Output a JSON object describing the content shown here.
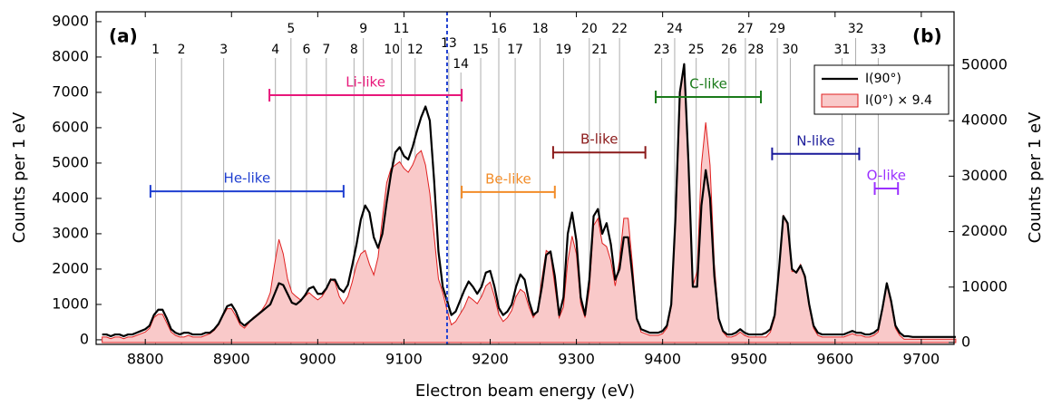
{
  "chart_data": {
    "type": "line",
    "xlabel": "Electron beam energy (eV)",
    "ylabel": "Counts per 1 eV",
    "y2label": "Counts per 1 eV",
    "panel_labels": [
      "(a)",
      "(b)"
    ],
    "xlim": [
      8743,
      9738
    ],
    "ylim": [
      -130,
      9280
    ],
    "y2lim": [
      -330,
      59640
    ],
    "xticks": [
      8800,
      8900,
      9000,
      9100,
      9200,
      9300,
      9400,
      9500,
      9600,
      9700
    ],
    "yticks": [
      0,
      1000,
      2000,
      3000,
      4000,
      5000,
      6000,
      7000,
      8000,
      9000
    ],
    "y2ticks": [
      0,
      10000,
      20000,
      30000,
      40000,
      50000
    ],
    "legend": "upper right",
    "divider_x": 9150,
    "x": [
      8750,
      8755,
      8760,
      8765,
      8770,
      8775,
      8780,
      8785,
      8790,
      8795,
      8800,
      8805,
      8810,
      8815,
      8820,
      8825,
      8830,
      8835,
      8840,
      8845,
      8850,
      8855,
      8860,
      8865,
      8870,
      8875,
      8880,
      8885,
      8890,
      8895,
      8900,
      8905,
      8910,
      8915,
      8920,
      8925,
      8930,
      8935,
      8940,
      8945,
      8950,
      8955,
      8960,
      8965,
      8970,
      8975,
      8980,
      8985,
      8990,
      8995,
      9000,
      9005,
      9010,
      9015,
      9020,
      9025,
      9030,
      9035,
      9040,
      9045,
      9050,
      9055,
      9060,
      9065,
      9070,
      9075,
      9080,
      9085,
      9090,
      9095,
      9100,
      9105,
      9110,
      9115,
      9120,
      9125,
      9130,
      9135,
      9140,
      9145,
      9150,
      9155,
      9160,
      9165,
      9170,
      9175,
      9180,
      9185,
      9190,
      9195,
      9200,
      9205,
      9210,
      9215,
      9220,
      9225,
      9230,
      9235,
      9240,
      9245,
      9250,
      9255,
      9260,
      9265,
      9270,
      9275,
      9280,
      9285,
      9290,
      9295,
      9300,
      9305,
      9310,
      9315,
      9320,
      9325,
      9330,
      9335,
      9340,
      9345,
      9350,
      9355,
      9360,
      9365,
      9370,
      9375,
      9380,
      9385,
      9390,
      9395,
      9400,
      9405,
      9410,
      9415,
      9420,
      9425,
      9430,
      9435,
      9440,
      9445,
      9450,
      9455,
      9460,
      9465,
      9470,
      9475,
      9480,
      9485,
      9490,
      9495,
      9500,
      9505,
      9510,
      9515,
      9520,
      9525,
      9530,
      9535,
      9540,
      9545,
      9550,
      9555,
      9560,
      9565,
      9570,
      9575,
      9580,
      9585,
      9590,
      9595,
      9600,
      9605,
      9610,
      9615,
      9620,
      9625,
      9630,
      9635,
      9640,
      9645,
      9650,
      9655,
      9660,
      9665,
      9670,
      9675,
      9680,
      9685,
      9690,
      9695,
      9700,
      9705,
      9710,
      9715,
      9720,
      9725,
      9730,
      9735,
      9740
    ],
    "series": [
      {
        "name": "I(0°) × 9.4",
        "color": "#e02020",
        "fill": "#f9c9c9",
        "axis": "y2",
        "values": [
          1000,
          1000,
          700,
          1000,
          1000,
          700,
          1000,
          1000,
          1300,
          1600,
          1900,
          2600,
          4500,
          5100,
          5100,
          3500,
          1900,
          1300,
          1000,
          1000,
          1300,
          1000,
          1000,
          1000,
          1300,
          1600,
          2200,
          3200,
          4800,
          6100,
          6100,
          4800,
          3200,
          2600,
          3500,
          4500,
          5100,
          5800,
          7000,
          9000,
          14100,
          18600,
          16000,
          11500,
          9000,
          8300,
          7700,
          8300,
          9000,
          8300,
          7700,
          8300,
          9600,
          11500,
          10900,
          8300,
          7000,
          8300,
          10900,
          14100,
          16000,
          16600,
          14100,
          12200,
          15400,
          22400,
          28800,
          31400,
          32000,
          32600,
          31400,
          30700,
          32000,
          33900,
          34600,
          32000,
          26900,
          19200,
          11500,
          9000,
          5800,
          3200,
          3800,
          5100,
          6400,
          8300,
          7700,
          7000,
          8300,
          10200,
          10900,
          8300,
          5100,
          3800,
          4500,
          5800,
          8300,
          9600,
          9000,
          6400,
          4500,
          5800,
          11500,
          16600,
          16000,
          10200,
          4500,
          6400,
          14700,
          19200,
          16000,
          7000,
          4500,
          9600,
          21100,
          22400,
          17900,
          17300,
          14700,
          10200,
          14700,
          22400,
          22400,
          14100,
          4500,
          1900,
          1600,
          1300,
          1300,
          1300,
          1600,
          2600,
          6400,
          22400,
          44800,
          49900,
          32000,
          10200,
          12800,
          32000,
          39700,
          32000,
          14100,
          4500,
          1900,
          1000,
          1000,
          1300,
          1900,
          1300,
          1000,
          1000,
          1000,
          1000,
          1000,
          1900,
          4500,
          13400,
          23000,
          21100,
          12800,
          12800,
          14100,
          11500,
          6400,
          2600,
          1300,
          1000,
          1000,
          1000,
          1000,
          1000,
          1000,
          1300,
          1600,
          1300,
          1300,
          1000,
          1000,
          1300,
          1900,
          6400,
          10600,
          7000,
          2600,
          1300,
          600,
          600,
          600,
          600,
          600,
          600,
          600,
          600,
          600,
          600,
          600,
          600,
          600
        ]
      },
      {
        "name": "I(90°)",
        "color": "#000000",
        "axis": "y",
        "values": [
          150,
          150,
          100,
          150,
          150,
          100,
          150,
          150,
          200,
          250,
          300,
          400,
          700,
          850,
          850,
          600,
          300,
          200,
          150,
          200,
          200,
          150,
          150,
          150,
          200,
          200,
          300,
          450,
          700,
          950,
          1000,
          800,
          500,
          400,
          500,
          600,
          700,
          800,
          900,
          1000,
          1300,
          1600,
          1550,
          1300,
          1050,
          1000,
          1100,
          1250,
          1450,
          1500,
          1300,
          1300,
          1450,
          1700,
          1700,
          1450,
          1350,
          1550,
          2100,
          2700,
          3400,
          3800,
          3600,
          2900,
          2600,
          3000,
          3900,
          4700,
          5300,
          5450,
          5200,
          5100,
          5450,
          5900,
          6300,
          6600,
          6200,
          4500,
          2500,
          1500,
          1100,
          700,
          800,
          1100,
          1400,
          1650,
          1500,
          1300,
          1500,
          1900,
          1950,
          1500,
          900,
          700,
          800,
          1000,
          1500,
          1850,
          1700,
          1100,
          700,
          800,
          1500,
          2400,
          2500,
          1800,
          700,
          1200,
          3000,
          3600,
          2800,
          1200,
          700,
          1700,
          3500,
          3700,
          3000,
          3300,
          2700,
          1700,
          2000,
          2900,
          2900,
          1800,
          600,
          300,
          250,
          200,
          200,
          200,
          250,
          400,
          1000,
          3500,
          7000,
          7800,
          5000,
          1500,
          1500,
          3800,
          4800,
          4000,
          1800,
          600,
          250,
          150,
          150,
          200,
          300,
          200,
          150,
          150,
          150,
          150,
          200,
          300,
          700,
          2000,
          3500,
          3300,
          2000,
          1900,
          2100,
          1800,
          1000,
          400,
          200,
          150,
          150,
          150,
          150,
          150,
          150,
          200,
          250,
          200,
          200,
          150,
          150,
          200,
          300,
          900,
          1600,
          1100,
          400,
          200,
          100,
          100,
          80,
          80,
          80,
          80,
          80,
          80,
          80,
          80,
          80,
          80,
          80
        ]
      }
    ],
    "peaks": [
      {
        "label": "1",
        "x": 8812
      },
      {
        "label": "2",
        "x": 8842
      },
      {
        "label": "3",
        "x": 8891
      },
      {
        "label": "4",
        "x": 8951
      },
      {
        "label": "5",
        "x": 8969
      },
      {
        "label": "6",
        "x": 8987
      },
      {
        "label": "7",
        "x": 9010
      },
      {
        "label": "8",
        "x": 9042
      },
      {
        "label": "9",
        "x": 9053
      },
      {
        "label": "10",
        "x": 9086
      },
      {
        "label": "11",
        "x": 9097
      },
      {
        "label": "12",
        "x": 9113
      },
      {
        "label": "13",
        "x": 9152
      },
      {
        "label": "14",
        "x": 9166
      },
      {
        "label": "15",
        "x": 9189
      },
      {
        "label": "16",
        "x": 9210
      },
      {
        "label": "17",
        "x": 9229
      },
      {
        "label": "18",
        "x": 9258
      },
      {
        "label": "19",
        "x": 9285
      },
      {
        "label": "20",
        "x": 9315
      },
      {
        "label": "21",
        "x": 9327
      },
      {
        "label": "22",
        "x": 9350
      },
      {
        "label": "23",
        "x": 9399
      },
      {
        "label": "24",
        "x": 9414
      },
      {
        "label": "25",
        "x": 9439
      },
      {
        "label": "26",
        "x": 9477
      },
      {
        "label": "27",
        "x": 9496
      },
      {
        "label": "28",
        "x": 9508
      },
      {
        "label": "29",
        "x": 9533
      },
      {
        "label": "30",
        "x": 9548
      },
      {
        "label": "31",
        "x": 9608
      },
      {
        "label": "32",
        "x": 9624
      },
      {
        "label": "33",
        "x": 9650
      }
    ],
    "ranges": [
      {
        "label": "He-like",
        "x": [
          8806,
          9030
        ],
        "y": 4200,
        "color": "#1f3fd1"
      },
      {
        "label": "Li-like",
        "x": [
          8944,
          9167
        ],
        "y": 6920,
        "color": "#e8177a"
      },
      {
        "label": "Be-like",
        "x": [
          9167,
          9275
        ],
        "y": 4180,
        "color": "#f28c28"
      },
      {
        "label": "B-like",
        "x": [
          9273,
          9380
        ],
        "y": 5300,
        "color": "#8b1a1a"
      },
      {
        "label": "C-like",
        "x": [
          9392,
          9514
        ],
        "y": 6870,
        "color": "#1a7a1a"
      },
      {
        "label": "N-like",
        "x": [
          9527,
          9628
        ],
        "y": 5260,
        "color": "#1a1a9a"
      },
      {
        "label": "O-like",
        "x": [
          9646,
          9673
        ],
        "y": 4280,
        "color": "#9b30ff"
      }
    ]
  }
}
